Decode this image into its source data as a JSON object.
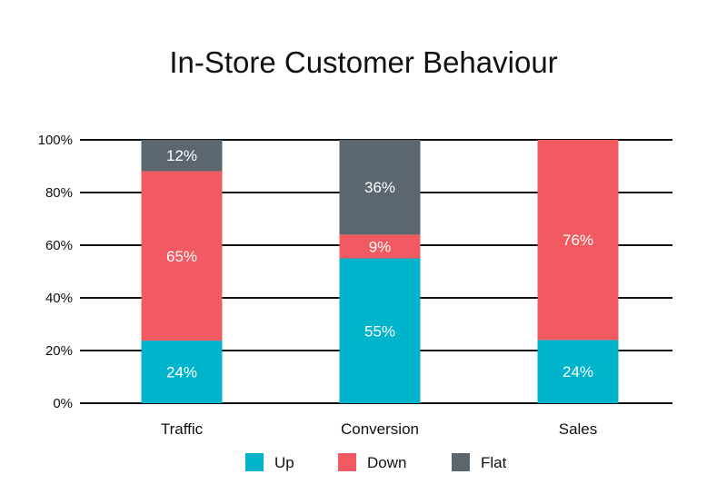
{
  "chart_data": {
    "type": "bar",
    "stacked": true,
    "title": "In-Store Customer Behaviour",
    "xlabel": "",
    "ylabel": "",
    "ylim": [
      0,
      100
    ],
    "yticks": [
      "0%",
      "20%",
      "40%",
      "60%",
      "80%",
      "100%"
    ],
    "grid": true,
    "legend_position": "bottom",
    "categories": [
      "Traffic",
      "Conversion",
      "Sales"
    ],
    "series": [
      {
        "name": "Up",
        "color": "#00b4cb",
        "values": [
          24,
          55,
          24
        ],
        "labels": [
          "24%",
          "55%",
          "24%"
        ]
      },
      {
        "name": "Down",
        "color": "#f05a60",
        "values": [
          65,
          9,
          76
        ],
        "labels": [
          "65%",
          "9%",
          "76%"
        ]
      },
      {
        "name": "Flat",
        "color": "#5c666e",
        "values": [
          12,
          36,
          0
        ],
        "labels": [
          "12%",
          "36%",
          ""
        ]
      }
    ]
  }
}
